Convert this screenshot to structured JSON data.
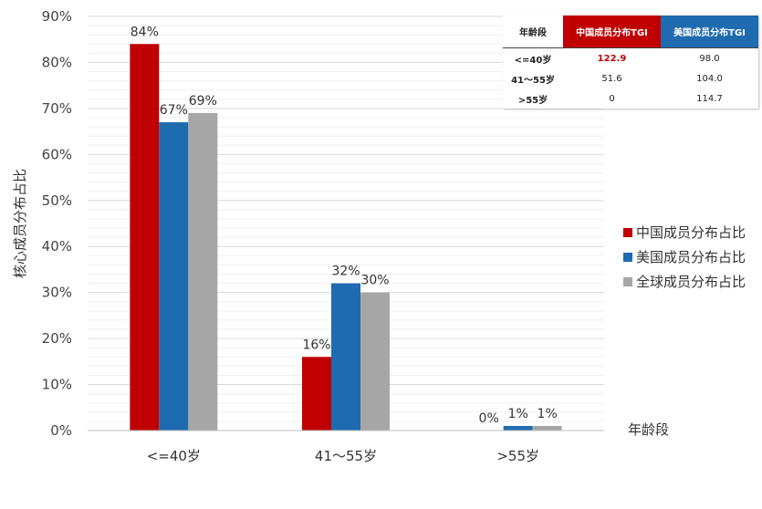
{
  "chart_data": {
    "type": "bar",
    "categories": [
      "<=40岁",
      "41～55岁",
      ">55岁"
    ],
    "series": [
      {
        "name": "中国成员分布占比",
        "values": [
          84,
          16,
          0
        ],
        "labels": [
          "84%",
          "16%",
          "0%"
        ],
        "color": "#c00000"
      },
      {
        "name": "美国成员分布占比",
        "values": [
          67,
          32,
          1
        ],
        "labels": [
          "67%",
          "32%",
          "1%"
        ],
        "color": "#1f6bb0"
      },
      {
        "name": "全球成员分布占比",
        "values": [
          69,
          30,
          1
        ],
        "labels": [
          "69%",
          "30%",
          "1%"
        ],
        "color": "#a6a6a6"
      }
    ],
    "ylabel": "核心成员分布占比",
    "xlabel": "年龄段",
    "ylim": [
      0,
      90
    ],
    "yticks": [
      "0%",
      "10%",
      "20%",
      "30%",
      "40%",
      "50%",
      "60%",
      "70%",
      "80%",
      "90%"
    ],
    "grid": true,
    "legend_position": "right"
  },
  "tgi_table": {
    "headers": [
      "年龄段",
      "中国成员分布TGI",
      "美国成员分布TGI"
    ],
    "rows": [
      [
        "<=40岁",
        "122.9",
        "98.0"
      ],
      [
        "41～55岁",
        "51.6",
        "104.0"
      ],
      [
        ">55岁",
        "0",
        "114.7"
      ]
    ],
    "highlight_color": "#c00000",
    "cn_header_color": "#c00000",
    "us_header_color": "#1f6bb0"
  }
}
